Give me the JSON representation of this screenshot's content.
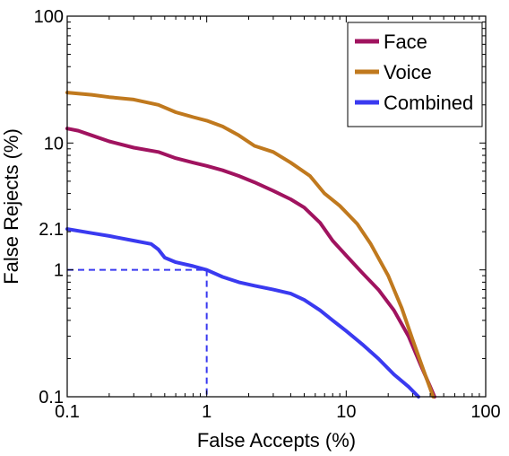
{
  "chart_data": {
    "type": "line",
    "title": "",
    "xlabel": "False Accepts (%)",
    "ylabel": "False Rejects (%)",
    "xscale": "log",
    "yscale": "log",
    "xlim": [
      0.1,
      100
    ],
    "ylim": [
      0.1,
      100
    ],
    "xticks": [
      0.1,
      1,
      10,
      100
    ],
    "xtick_labels": [
      "0.1",
      "1",
      "10",
      "100"
    ],
    "yticks": [
      0.1,
      1,
      2.1,
      10,
      100
    ],
    "ytick_labels": [
      "0.1",
      "1",
      "2.1",
      "10",
      "100"
    ],
    "grid": false,
    "legend_position": "top-right",
    "series": [
      {
        "name": "Face",
        "color": "#a0135f",
        "x": [
          0.1,
          0.12,
          0.15,
          0.2,
          0.3,
          0.45,
          0.6,
          0.8,
          1.0,
          1.3,
          1.7,
          2.2,
          3.0,
          4.0,
          5.0,
          6.5,
          8.0,
          10,
          13,
          17,
          22,
          28,
          34,
          40,
          43
        ],
        "y": [
          13,
          12.5,
          11.5,
          10.3,
          9.2,
          8.5,
          7.6,
          7.0,
          6.6,
          6.1,
          5.5,
          4.9,
          4.2,
          3.6,
          3.1,
          2.35,
          1.7,
          1.3,
          0.95,
          0.7,
          0.48,
          0.3,
          0.18,
          0.12,
          0.1
        ]
      },
      {
        "name": "Voice",
        "color": "#c0791e",
        "x": [
          0.1,
          0.15,
          0.2,
          0.3,
          0.45,
          0.6,
          0.8,
          1.0,
          1.3,
          1.7,
          2.2,
          3.0,
          4.0,
          5.5,
          7.0,
          9.0,
          12,
          15,
          20,
          25,
          30,
          36,
          42
        ],
        "y": [
          25,
          24,
          23,
          22,
          20,
          17.5,
          16,
          15,
          13.5,
          11.5,
          9.5,
          8.5,
          7.0,
          5.5,
          4.0,
          3.2,
          2.3,
          1.6,
          0.9,
          0.5,
          0.28,
          0.16,
          0.1
        ]
      },
      {
        "name": "Combined",
        "color": "#3a3af0",
        "x": [
          0.1,
          0.15,
          0.2,
          0.3,
          0.4,
          0.45,
          0.5,
          0.6,
          0.8,
          1.0,
          1.3,
          1.7,
          2.2,
          3.0,
          4.0,
          5.0,
          6.5,
          8.0,
          10,
          13,
          17,
          22,
          28,
          33
        ],
        "y": [
          2.1,
          1.95,
          1.85,
          1.7,
          1.6,
          1.45,
          1.25,
          1.15,
          1.07,
          1.0,
          0.88,
          0.8,
          0.75,
          0.7,
          0.65,
          0.58,
          0.48,
          0.4,
          0.33,
          0.26,
          0.2,
          0.15,
          0.12,
          0.1
        ]
      }
    ],
    "annotations": [
      {
        "type": "dashed-reference",
        "x": 1,
        "y": 1,
        "color": "#3a3af0"
      }
    ]
  }
}
